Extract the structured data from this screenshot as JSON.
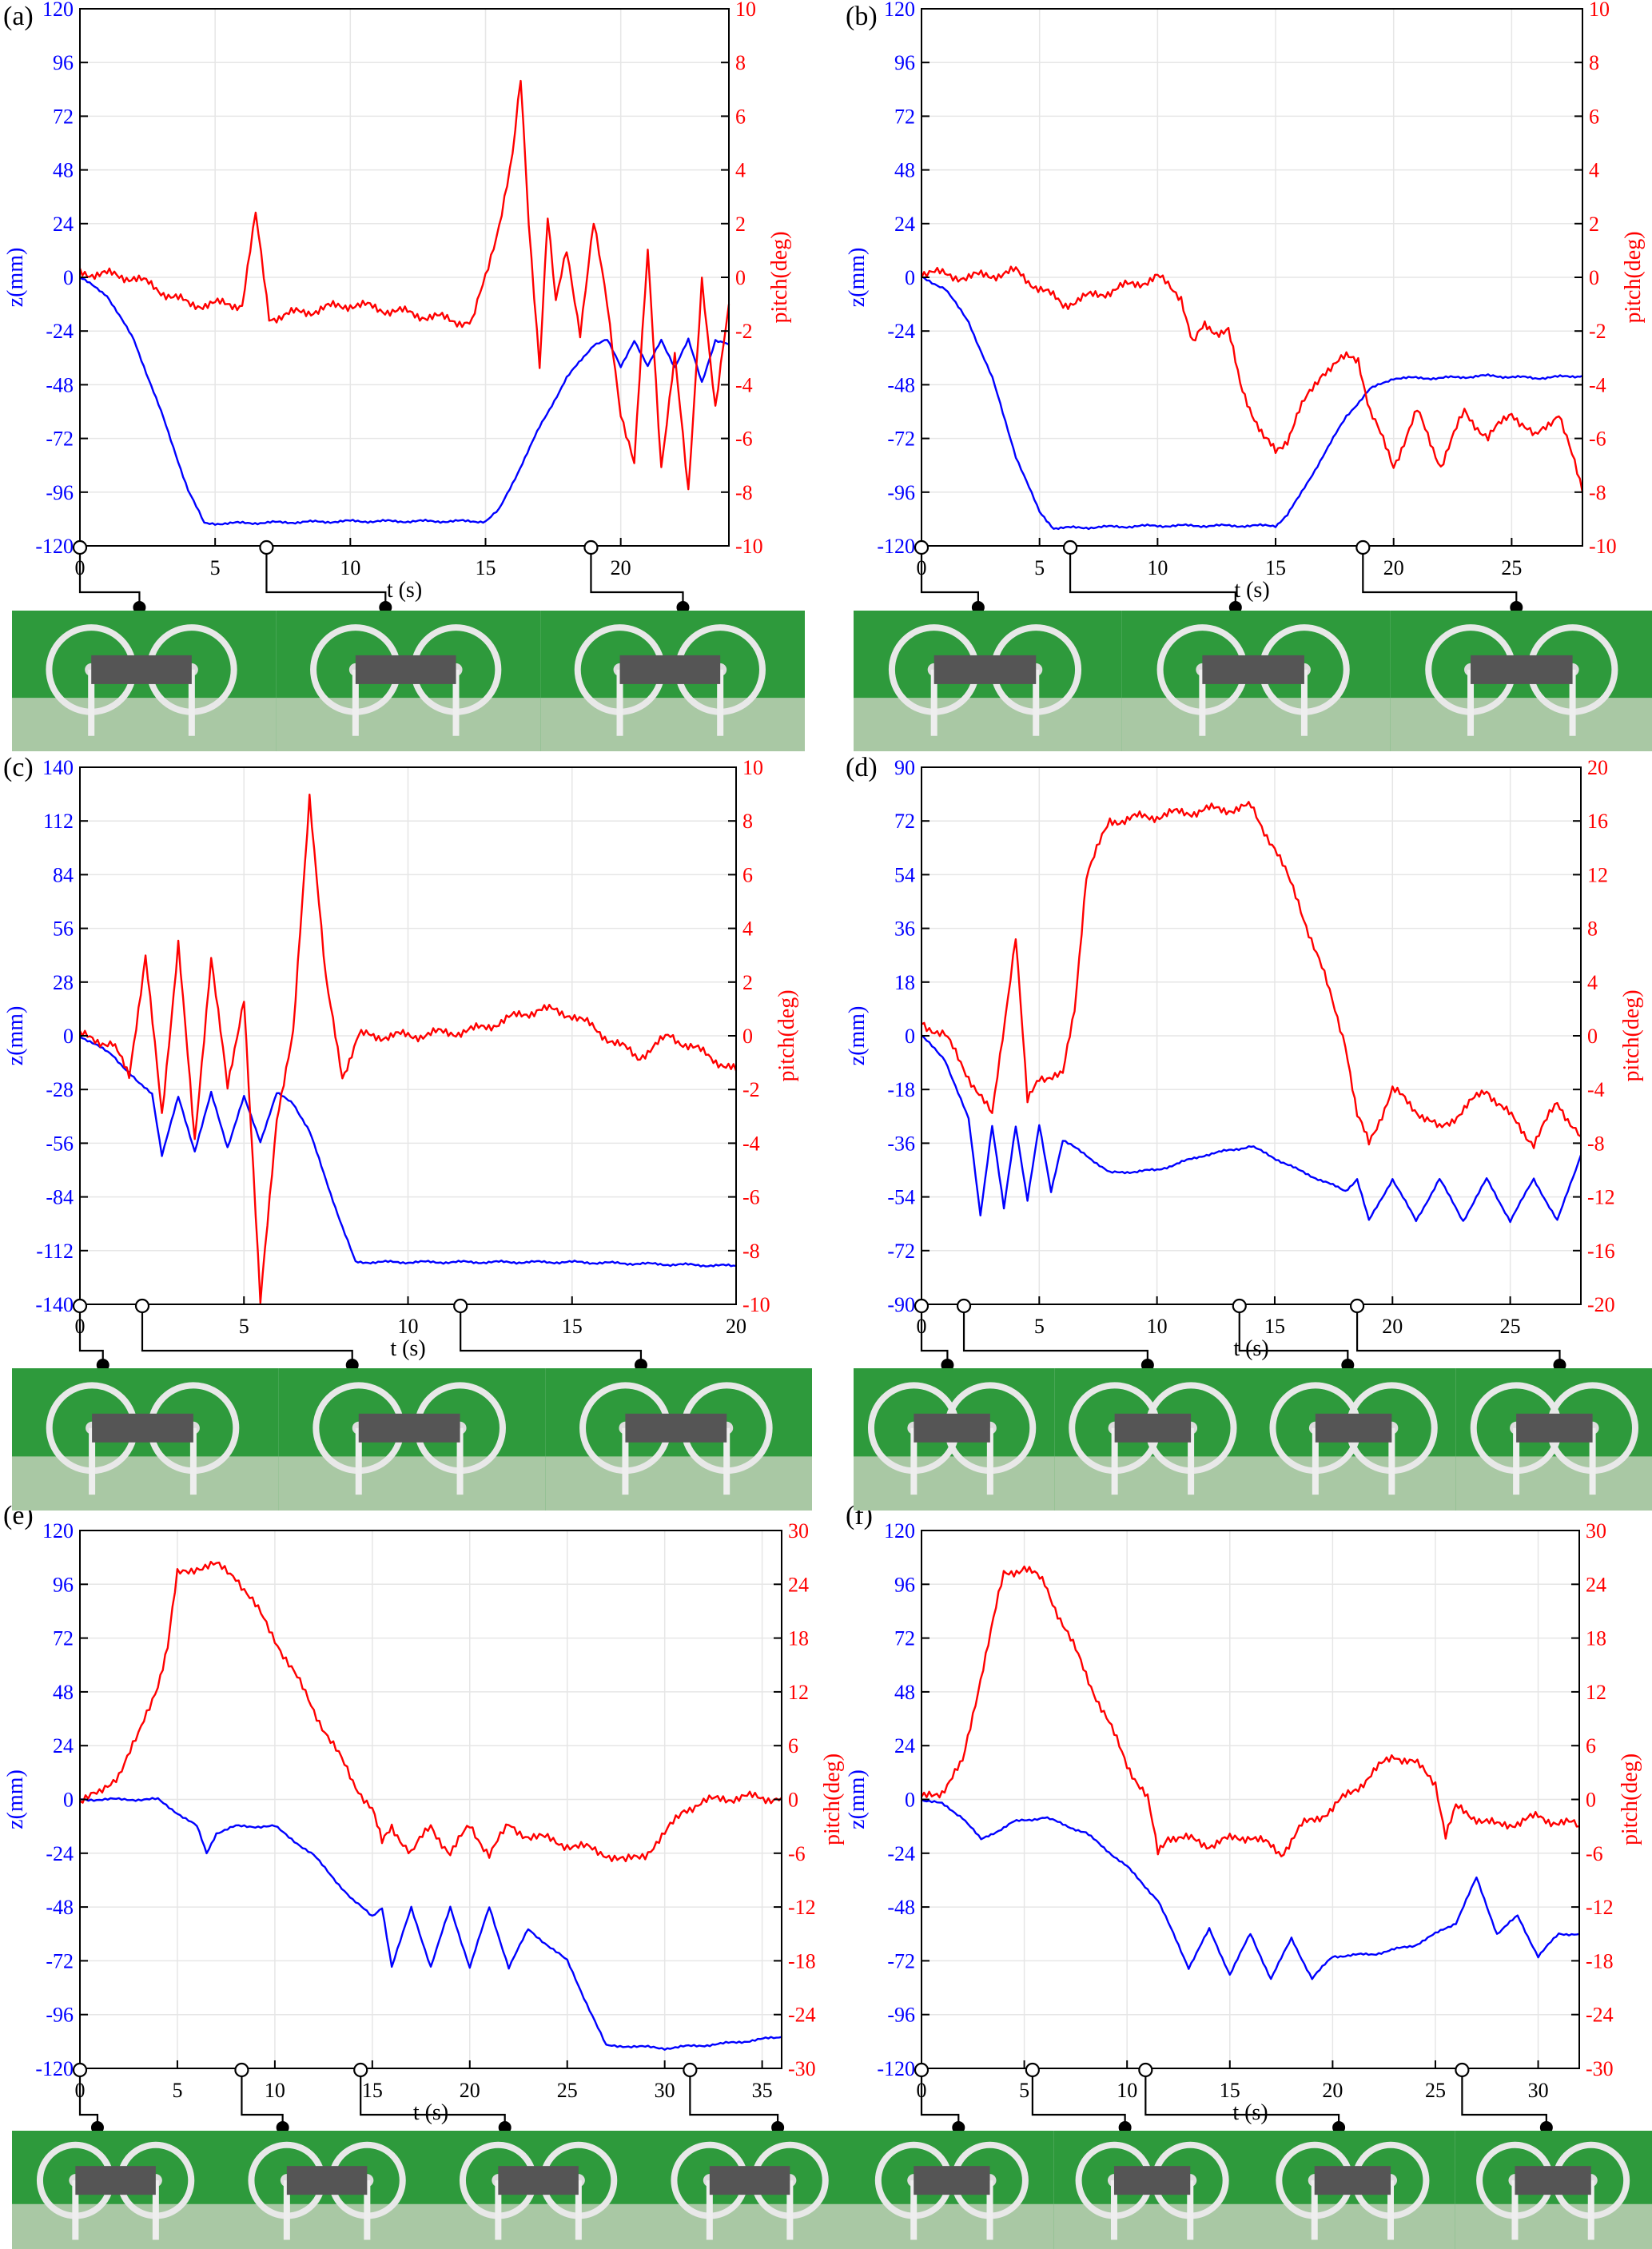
{
  "colors": {
    "z": "#0000ff",
    "pitch": "#ff0000",
    "axis": "#000000",
    "grid": "#e6e6e6",
    "photo_bg": "#2e9a3c"
  },
  "labels": {
    "x_axis": "t (s)",
    "z_axis": "z(mm)",
    "pitch_axis": "pitch(deg)"
  },
  "chart_data": [
    {
      "panel": "(a)",
      "type": "line",
      "xlim": [
        0,
        24
      ],
      "xticks": [
        0,
        5,
        10,
        15,
        20
      ],
      "ylim_left": [
        -120,
        120
      ],
      "yticks_left": [
        -120,
        -96,
        -72,
        -48,
        -24,
        0,
        24,
        48,
        72,
        96,
        120
      ],
      "ylim_right": [
        -10,
        10
      ],
      "yticks_right": [
        -10,
        -8,
        -6,
        -4,
        -2,
        0,
        2,
        4,
        6,
        8,
        10
      ],
      "grid": true,
      "series": [
        {
          "axis": "left",
          "color": "#0000ff",
          "x": [
            0,
            1,
            2,
            3,
            4,
            4.6,
            5,
            10,
            15,
            15.5,
            16,
            17,
            18,
            19,
            19.5,
            20,
            20.5,
            21,
            21.5,
            22,
            22.5,
            23,
            23.5,
            24
          ],
          "y": [
            0,
            -8,
            -28,
            -60,
            -95,
            -110,
            -110,
            -109,
            -109,
            -104,
            -92,
            -67,
            -45,
            -30,
            -28,
            -40,
            -28,
            -40,
            -28,
            -40,
            -28,
            -47,
            -28,
            -30
          ]
        },
        {
          "axis": "right",
          "color": "#ff0000",
          "x": [
            0,
            2,
            3,
            4,
            6,
            6.5,
            7,
            10,
            14.5,
            15,
            15.5,
            16,
            16.3,
            16.6,
            17,
            17.3,
            17.6,
            18,
            18.5,
            19,
            19.5,
            20,
            20.5,
            21,
            21.5,
            22,
            22.5,
            23,
            23.5,
            24
          ],
          "y": [
            0.2,
            0,
            -0.5,
            -1,
            -1,
            2.3,
            -1.5,
            -1,
            -1.7,
            0,
            2,
            4.5,
            7.3,
            2,
            -3.2,
            2.3,
            -1,
            1,
            -2,
            2,
            -1,
            -5,
            -7,
            1,
            -7,
            -3,
            -8,
            0,
            -5,
            -1
          ]
        }
      ],
      "markers": [
        {
          "open": 0,
          "closed": 2.2
        },
        {
          "open": 6.9,
          "closed": 11.3
        },
        {
          "open": 18.9,
          "closed": 22.3
        }
      ]
    },
    {
      "panel": "(b)",
      "type": "line",
      "xlim": [
        0,
        28
      ],
      "xticks": [
        0,
        5,
        10,
        15,
        20,
        25
      ],
      "ylim_left": [
        -120,
        120
      ],
      "yticks_left": [
        -120,
        -96,
        -72,
        -48,
        -24,
        0,
        24,
        48,
        72,
        96,
        120
      ],
      "ylim_right": [
        -10,
        10
      ],
      "yticks_right": [
        -10,
        -8,
        -6,
        -4,
        -2,
        0,
        2,
        4,
        6,
        8,
        10
      ],
      "grid": true,
      "series": [
        {
          "axis": "left",
          "color": "#0000ff",
          "x": [
            0,
            1,
            2,
            3,
            4,
            5,
            5.6,
            6,
            10,
            15,
            15.5,
            16,
            17,
            18,
            19,
            20,
            22,
            24,
            26,
            28
          ],
          "y": [
            0,
            -5,
            -20,
            -45,
            -80,
            -105,
            -112,
            -112,
            -111,
            -111,
            -106,
            -98,
            -80,
            -62,
            -50,
            -45,
            -45,
            -44,
            -45,
            -44
          ]
        },
        {
          "axis": "right",
          "color": "#ff0000",
          "x": [
            0,
            1,
            2,
            4,
            6,
            8,
            10,
            11,
            11.5,
            12,
            12.5,
            13,
            13.5,
            14,
            14.5,
            15,
            15.5,
            16,
            17,
            18,
            18.5,
            19,
            20,
            21,
            22,
            23,
            24,
            25,
            26,
            27,
            28
          ],
          "y": [
            0.2,
            0.1,
            0,
            0.2,
            -1,
            -0.5,
            0,
            -0.7,
            -2.5,
            -1.8,
            -2,
            -2,
            -4,
            -5,
            -6,
            -6.5,
            -6,
            -5,
            -3.5,
            -3,
            -3,
            -5,
            -7,
            -5,
            -7,
            -5,
            -6,
            -5,
            -6,
            -5,
            -8
          ]
        }
      ],
      "markers": [
        {
          "open": 0,
          "closed": 2.4
        },
        {
          "open": 6.3,
          "closed": 13.3
        },
        {
          "open": 18.7,
          "closed": 25.2
        }
      ]
    },
    {
      "panel": "(c)",
      "type": "line",
      "xlim": [
        0,
        20
      ],
      "xticks": [
        0,
        5,
        10,
        15,
        20
      ],
      "ylim_left": [
        -140,
        140
      ],
      "yticks_left": [
        -140,
        -112,
        -84,
        -56,
        -28,
        0,
        28,
        56,
        84,
        112,
        140
      ],
      "ylim_right": [
        -10,
        10
      ],
      "yticks_right": [
        -10,
        -8,
        -6,
        -4,
        -2,
        0,
        2,
        4,
        6,
        8,
        10
      ],
      "grid": true,
      "series": [
        {
          "axis": "left",
          "color": "#0000ff",
          "x": [
            0,
            1,
            1.8,
            2.2,
            2.5,
            3,
            3.5,
            4,
            4.5,
            5,
            5.5,
            6,
            6.5,
            7,
            7.5,
            8,
            8.4,
            10,
            15,
            20
          ],
          "y": [
            0,
            -10,
            -25,
            -30,
            -62,
            -32,
            -60,
            -30,
            -58,
            -32,
            -55,
            -30,
            -35,
            -50,
            -75,
            -100,
            -118,
            -118,
            -118,
            -120
          ]
        },
        {
          "axis": "right",
          "color": "#ff0000",
          "x": [
            0,
            1,
            1.5,
            2,
            2.5,
            3,
            3.5,
            4,
            4.5,
            5,
            5.5,
            6,
            6.5,
            7,
            7.5,
            8,
            8.5,
            10,
            12,
            14,
            15,
            17,
            18,
            20
          ],
          "y": [
            0,
            -0.3,
            -1.5,
            3,
            -3,
            3.5,
            -4,
            3,
            -2,
            1.5,
            -10,
            -3,
            0,
            9,
            2,
            -1.5,
            0,
            0,
            0.2,
            1,
            0.8,
            -0.8,
            0,
            -1.3
          ]
        }
      ],
      "markers": [
        {
          "open": 0,
          "closed": 0.7
        },
        {
          "open": 1.9,
          "closed": 8.3
        },
        {
          "open": 11.6,
          "closed": 17.1
        }
      ]
    },
    {
      "panel": "(d)",
      "type": "line",
      "xlim": [
        0,
        28
      ],
      "xticks": [
        0,
        5,
        10,
        15,
        20,
        25
      ],
      "ylim_left": [
        -90,
        90
      ],
      "yticks_left": [
        -90,
        -72,
        -54,
        -36,
        -18,
        0,
        18,
        36,
        54,
        72,
        90
      ],
      "ylim_right": [
        -20,
        20
      ],
      "yticks_right": [
        -20,
        -16,
        -12,
        -8,
        -4,
        0,
        4,
        8,
        12,
        16,
        20
      ],
      "grid": true,
      "series": [
        {
          "axis": "left",
          "color": "#0000ff",
          "x": [
            0,
            1,
            2,
            2.5,
            3,
            3.5,
            4,
            4.5,
            5,
            5.5,
            6,
            7,
            8,
            10,
            12,
            14,
            16,
            18,
            18.5,
            19,
            20,
            21,
            22,
            23,
            24,
            25,
            26,
            27,
            28
          ],
          "y": [
            0,
            -8,
            -28,
            -60,
            -30,
            -58,
            -30,
            -55,
            -30,
            -52,
            -35,
            -40,
            -46,
            -45,
            -40,
            -37,
            -45,
            -52,
            -48,
            -62,
            -48,
            -62,
            -48,
            -62,
            -48,
            -62,
            -48,
            -62,
            -40
          ]
        },
        {
          "axis": "right",
          "color": "#ff0000",
          "x": [
            0,
            1,
            2,
            3,
            4,
            4.5,
            5,
            6,
            6.5,
            7,
            8,
            10,
            12,
            14,
            15,
            16,
            17,
            18,
            18.5,
            19,
            20,
            22,
            24,
            26,
            27,
            28
          ],
          "y": [
            1,
            0,
            -3,
            -6,
            7.5,
            -5,
            -3,
            -3,
            2,
            12,
            16,
            16.4,
            16.8,
            17,
            14,
            10,
            5,
            -0.5,
            -6,
            -8,
            -4,
            -7,
            -4,
            -8,
            -5,
            -7.5
          ]
        }
      ],
      "markers": [
        {
          "open": 0,
          "closed": 1.1
        },
        {
          "open": 1.8,
          "closed": 9.6
        },
        {
          "open": 13.5,
          "closed": 18.1
        },
        {
          "open": 18.5,
          "closed": 27.1
        }
      ]
    },
    {
      "panel": "(e)",
      "type": "line",
      "xlim": [
        0,
        36
      ],
      "xticks": [
        0,
        5,
        10,
        15,
        20,
        25,
        30,
        35
      ],
      "ylim_left": [
        -120,
        120
      ],
      "yticks_left": [
        -120,
        -96,
        -72,
        -48,
        -24,
        0,
        24,
        48,
        72,
        96,
        120
      ],
      "ylim_right": [
        -30,
        30
      ],
      "yticks_right": [
        -30,
        -24,
        -18,
        -12,
        -6,
        0,
        6,
        12,
        18,
        24,
        30
      ],
      "grid": true,
      "series": [
        {
          "axis": "left",
          "color": "#0000ff",
          "x": [
            0,
            2,
            4,
            6,
            6.5,
            7,
            8,
            10,
            12,
            14,
            15,
            15.5,
            16,
            17,
            18,
            19,
            20,
            21,
            22,
            23,
            25,
            27,
            28,
            30,
            33,
            36
          ],
          "y": [
            0,
            0,
            0,
            -12,
            -24,
            -15,
            -12,
            -12,
            -25,
            -45,
            -52,
            -48,
            -75,
            -48,
            -75,
            -48,
            -75,
            -48,
            -75,
            -58,
            -72,
            -110,
            -110,
            -111,
            -109,
            -106
          ]
        },
        {
          "axis": "right",
          "color": "#ff0000",
          "x": [
            0,
            1,
            2,
            3,
            4,
            4.5,
            5,
            6,
            7,
            8,
            10,
            12,
            14,
            15,
            15.5,
            16,
            17,
            18,
            19,
            20,
            21,
            22,
            23,
            25,
            27,
            28,
            29,
            30,
            31,
            33,
            36
          ],
          "y": [
            0,
            0.5,
            3,
            7,
            13,
            17,
            25,
            26,
            26,
            25,
            18,
            10,
            2,
            -1,
            -5,
            -3,
            -6,
            -3,
            -6,
            -3,
            -6,
            -3,
            -4,
            -5,
            -6,
            -7,
            -6,
            -4,
            -1,
            0.2,
            0.2
          ]
        }
      ],
      "markers": [
        {
          "open": 0,
          "closed": 0.9
        },
        {
          "open": 8.3,
          "closed": 10.4
        },
        {
          "open": 14.4,
          "closed": 21.8
        },
        {
          "open": 31.3,
          "closed": 35.8
        }
      ]
    },
    {
      "panel": "(f)",
      "type": "line",
      "xlim": [
        0,
        32
      ],
      "xticks": [
        0,
        5,
        10,
        15,
        20,
        25,
        30
      ],
      "ylim_left": [
        -120,
        120
      ],
      "yticks_left": [
        -120,
        -96,
        -72,
        -48,
        -24,
        0,
        24,
        48,
        72,
        96,
        120
      ],
      "ylim_right": [
        -30,
        30
      ],
      "yticks_right": [
        -30,
        -24,
        -18,
        -12,
        -6,
        0,
        6,
        12,
        18,
        24,
        30
      ],
      "grid": true,
      "series": [
        {
          "axis": "left",
          "color": "#0000ff",
          "x": [
            0,
            1,
            2,
            2.9,
            3.5,
            4.5,
            6,
            8,
            10,
            11.5,
            12,
            13,
            14,
            15,
            16,
            17,
            18,
            19,
            20,
            22,
            24,
            26,
            27,
            28,
            29,
            30,
            31,
            32
          ],
          "y": [
            0,
            -2,
            -8,
            -18,
            -15,
            -10,
            -8,
            -15,
            -30,
            -45,
            -55,
            -75,
            -58,
            -78,
            -60,
            -80,
            -62,
            -80,
            -70,
            -69,
            -65,
            -55,
            -35,
            -60,
            -52,
            -70,
            -60,
            -60
          ]
        },
        {
          "axis": "right",
          "color": "#ff0000",
          "x": [
            0,
            1,
            2,
            3,
            4,
            4.5,
            5,
            6,
            8,
            10,
            11,
            11.5,
            12,
            14,
            16,
            17.5,
            18.5,
            20,
            22,
            23,
            24,
            25,
            25.5,
            26,
            27,
            28,
            30,
            32
          ],
          "y": [
            0,
            1,
            4,
            15,
            25,
            25.5,
            26,
            24,
            14,
            4,
            0,
            -6,
            -4,
            -5,
            -4,
            -6,
            -3,
            -1,
            3,
            5,
            4,
            2,
            -4,
            -1,
            -2,
            -3,
            -2,
            -3
          ]
        }
      ],
      "markers": [
        {
          "open": 0,
          "closed": 1.8
        },
        {
          "open": 5.4,
          "closed": 9.9
        },
        {
          "open": 10.9,
          "closed": 20.3
        },
        {
          "open": 26.3,
          "closed": 30.4
        }
      ]
    }
  ]
}
